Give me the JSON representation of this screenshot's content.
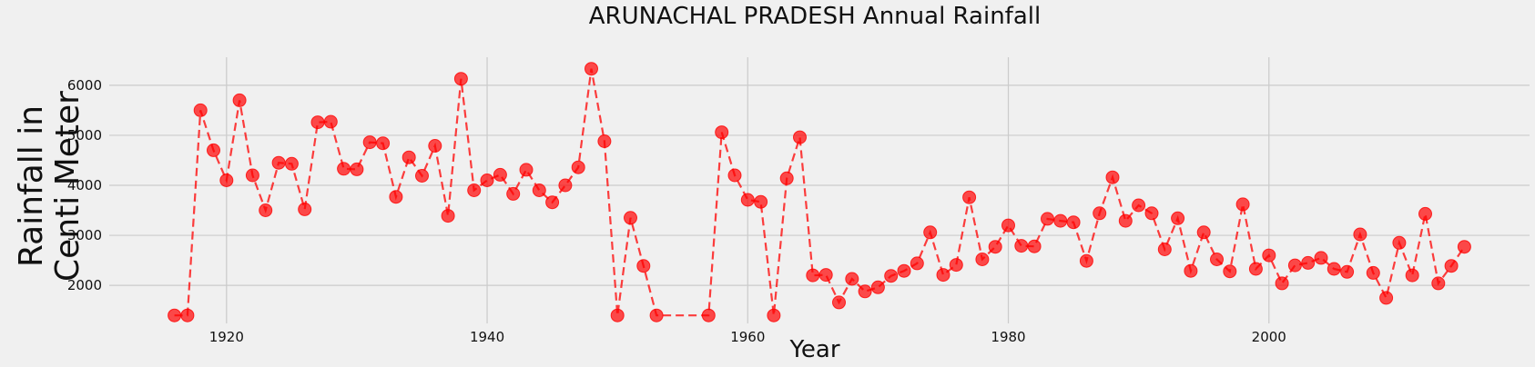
{
  "chart_data": {
    "type": "line",
    "title": "ARUNACHAL PRADESH Annual Rainfall",
    "xlabel": "Year",
    "ylabel_lines": [
      "Rainfall in",
      "Centi Meter"
    ],
    "x_ticks": [
      1920,
      1940,
      1960,
      1980,
      2000
    ],
    "y_ticks": [
      2000,
      3000,
      4000,
      5000,
      6000
    ],
    "xlim": [
      1911,
      2020
    ],
    "ylim": [
      1240,
      6560
    ],
    "grid": true,
    "line_style": "dashed",
    "color": "#ff0000",
    "series": [
      {
        "x": [
          1916,
          1917,
          1918,
          1919,
          1920,
          1921,
          1922,
          1923,
          1924,
          1925,
          1926,
          1927,
          1928,
          1929,
          1930,
          1931,
          1932,
          1933,
          1934,
          1935,
          1936,
          1937,
          1938,
          1939,
          1940,
          1941,
          1942,
          1943,
          1944,
          1945,
          1946,
          1947,
          1948,
          1949,
          1950,
          1951,
          1952,
          1953,
          1957,
          1958,
          1959,
          1960,
          1961,
          1962,
          1963,
          1964,
          1965,
          1966,
          1967,
          1968,
          1969,
          1970,
          1971,
          1972,
          1973,
          1974,
          1975,
          1976,
          1977,
          1978,
          1979,
          1980,
          1981,
          1982,
          1983,
          1984,
          1985,
          1986,
          1987,
          1988,
          1989,
          1990,
          1991,
          1992,
          1993,
          1994,
          1995,
          1996,
          1997,
          1998,
          1999,
          2000,
          2001,
          2002,
          2003,
          2004,
          2005,
          2006,
          2007,
          2008,
          2009,
          2010,
          2011,
          2012,
          2013,
          2014,
          2015
        ],
        "values": [
          1400,
          1400,
          5500,
          4700,
          4100,
          5700,
          4200,
          3500,
          4450,
          4430,
          3520,
          5260,
          5270,
          4330,
          4320,
          4860,
          4840,
          3770,
          4560,
          4190,
          4790,
          3390,
          6130,
          3900,
          4100,
          4210,
          3830,
          4310,
          3900,
          3660,
          4000,
          4360,
          6330,
          4880,
          1400,
          3350,
          2390,
          1400,
          1400,
          5060,
          4200,
          3710,
          3670,
          1400,
          4140,
          4960,
          2200,
          2210,
          1660,
          2130,
          1880,
          1960,
          2190,
          2290,
          2440,
          3060,
          2210,
          2410,
          3760,
          2520,
          2770,
          3200,
          2790,
          2780,
          3330,
          3290,
          3260,
          2490,
          3440,
          4160,
          3290,
          3600,
          3440,
          2720,
          3340,
          2290,
          3060,
          2520,
          2280,
          3620,
          2330,
          2600,
          2040,
          2400,
          2450,
          2550,
          2330,
          2270,
          3020,
          2250,
          1750,
          2850,
          2200,
          3430,
          2040,
          2390,
          2770
        ]
      }
    ]
  }
}
